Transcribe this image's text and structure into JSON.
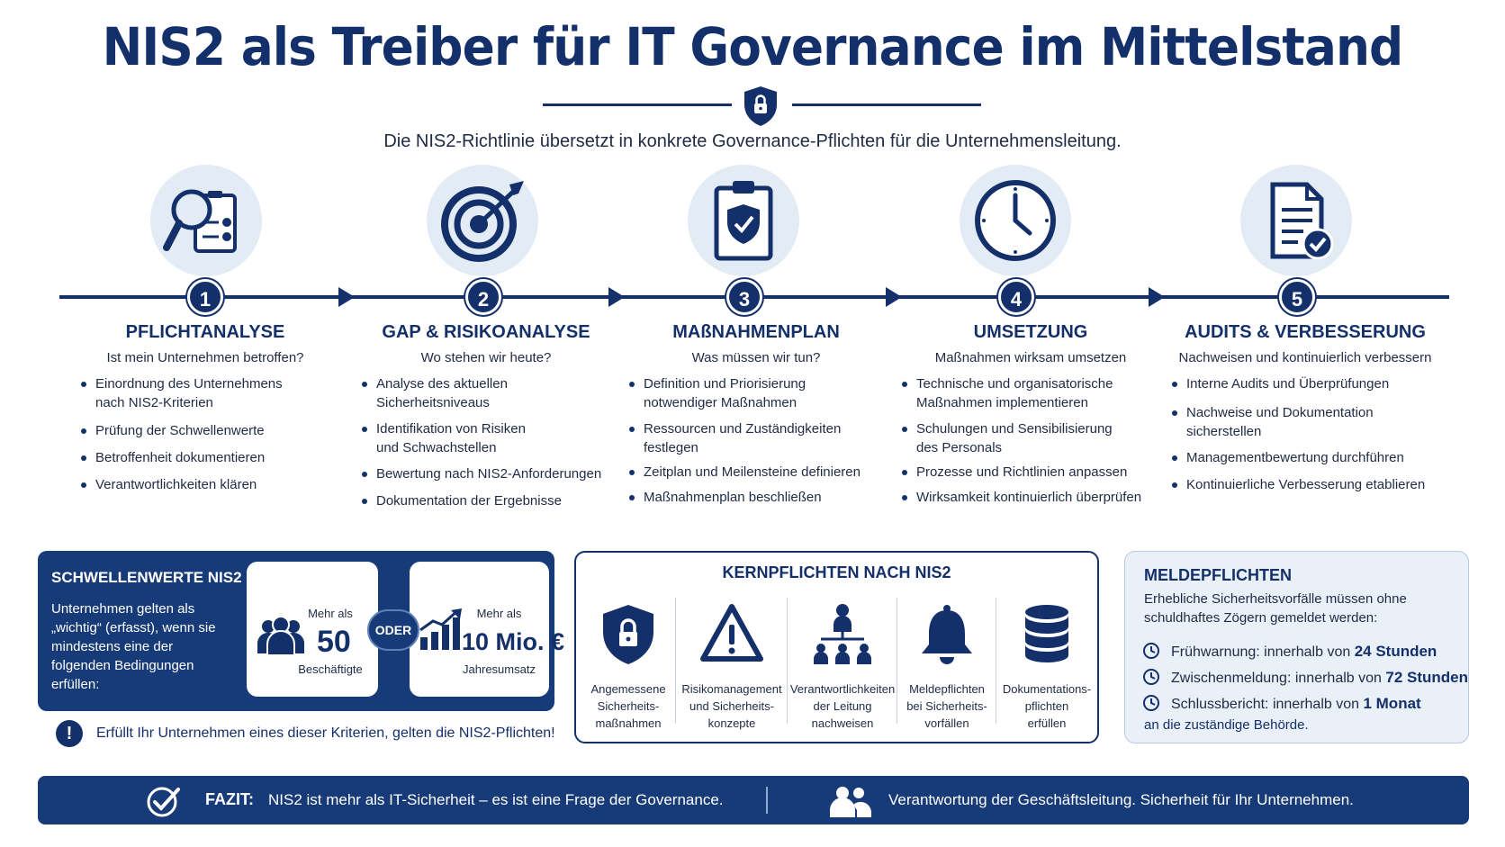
{
  "header": {
    "title": "NIS2 als Treiber für IT Governance im Mittelstand",
    "subtitle": "Die NIS2-Richtlinie übersetzt in konkrete Governance-Pflichten für die Unternehmensleitung."
  },
  "steps": [
    {
      "number": "1",
      "title": "PFLICHTANALYSE",
      "subtitle": "Ist mein Unternehmen betroffen?",
      "items": [
        "Einordnung des Unternehmens\nnach NIS2-Kriterien",
        "Prüfung der Schwellenwerte",
        "Betroffenheit dokumentieren",
        "Verantwortlichkeiten klären"
      ]
    },
    {
      "number": "2",
      "title": "GAP & RISIKOANALYSE",
      "subtitle": "Wo stehen wir heute?",
      "items": [
        "Analyse des aktuellen\nSicherheitsniveaus",
        "Identifikation von Risiken\nund Schwachstellen",
        "Bewertung nach NIS2-Anforderungen",
        "Dokumentation der Ergebnisse"
      ]
    },
    {
      "number": "3",
      "title": "MAßNAHMENPLAN",
      "subtitle": "Was müssen wir tun?",
      "items": [
        "Definition und Priorisierung\nnotwendiger Maßnahmen",
        "Ressourcen und Zuständigkeiten\nfestlegen",
        "Zeitplan und Meilensteine definieren",
        "Maßnahmenplan beschließen"
      ]
    },
    {
      "number": "4",
      "title": "UMSETZUNG",
      "subtitle": "Maßnahmen wirksam umsetzen",
      "items": [
        "Technische und organisatorische\nMaßnahmen implementieren",
        "Schulungen und Sensibilisierung\ndes Personals",
        "Prozesse und Richtlinien anpassen",
        "Wirksamkeit kontinuierlich überprüfen"
      ]
    },
    {
      "number": "5",
      "title": "AUDITS & VERBESSERUNG",
      "subtitle": "Nachweisen und kontinuierlich verbessern",
      "items": [
        "Interne Audits und Überprüfungen",
        "Nachweise und Dokumentation\nsicherstellen",
        "Managementbewertung durchführen",
        "Kontinuierliche Verbesserung etablieren"
      ]
    }
  ],
  "thresholds": {
    "title": "SCHWELLENWERTE NIS2",
    "text": "Unternehmen gelten als „wichtig“ (erfasst), wenn sie mindestens eine der folgenden Bedingungen erfüllen:",
    "card_a": {
      "pre": "Mehr als",
      "value": "50",
      "post": "Beschäftigte"
    },
    "or_label": "ODER",
    "card_b": {
      "pre": "Mehr als",
      "value": "10 Mio. €",
      "post": "Jahresumsatz"
    },
    "note": "Erfüllt Ihr Unternehmen eines dieser Kriterien, gelten die NIS2-Pflichten!"
  },
  "core": {
    "title": "KERNPFLICHTEN NACH NIS2",
    "items": [
      {
        "label": "Angemessene\nSicherheits-\nmaßnahmen"
      },
      {
        "label": "Risikomanagement\nund Sicherheits-\nkonzepte"
      },
      {
        "label": "Verantwortlichkeiten\nder Leitung\nnachweisen"
      },
      {
        "label": "Meldepflichten\nbei Sicherheits-\nvorfällen"
      },
      {
        "label": "Dokumentations-\npflichten\nerfüllen"
      }
    ]
  },
  "reporting": {
    "title": "MELDEPFLICHTEN",
    "text": "Erhebliche Sicherheitsvorfälle müssen ohne schuldhaftes Zögern gemeldet werden:",
    "rows": [
      {
        "label": "Frühwarnung: innerhalb von",
        "value": "24 Stunden"
      },
      {
        "label": "Zwischenmeldung: innerhalb von",
        "value": "72 Stunden"
      },
      {
        "label": "Schlussbericht: innerhalb von",
        "value": "1 Monat"
      }
    ],
    "footer": "an die zuständige Behörde."
  },
  "footer": {
    "label": "FAZIT:",
    "text1": "NIS2 ist mehr als IT-Sicherheit – es ist eine Frage der Governance.",
    "text2": "Verantwortung der Geschäftsleitung. Sicherheit für Ihr Unternehmen."
  },
  "colors": {
    "primary": "#14306b",
    "panel": "#173a78",
    "icon_bg": "#e3ebf5"
  }
}
